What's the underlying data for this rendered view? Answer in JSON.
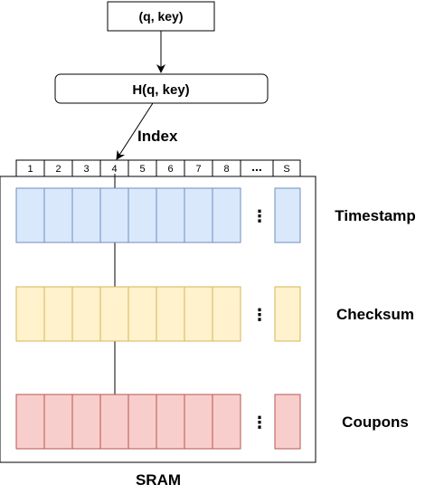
{
  "input_box": {
    "label": "(q, key)"
  },
  "hash_box": {
    "label": "H(q, key)"
  },
  "index_label": "Index",
  "index_cells": [
    "1",
    "2",
    "3",
    "4",
    "5",
    "6",
    "7",
    "8"
  ],
  "ellipsis_header": "...",
  "last_cell": "S",
  "memory_label": "SRAM",
  "rows": [
    {
      "label": "Timestamp",
      "fill": "#dae8fc",
      "stroke": "#6c8ebf"
    },
    {
      "label": "Checksum",
      "fill": "#fff2cc",
      "stroke": "#d6b656"
    },
    {
      "label": "Coupons",
      "fill": "#f8cecc",
      "stroke": "#b85450"
    }
  ],
  "row_ellipsis": "⋮",
  "selected_index": 4
}
